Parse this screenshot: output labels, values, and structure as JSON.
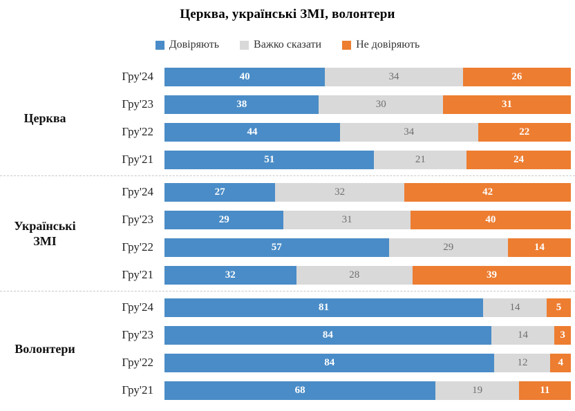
{
  "title": "Церква, українські ЗМІ, волонтери",
  "legend": [
    {
      "label": "Довіряють",
      "color": "#4a8cc7",
      "icon": "square-swatch-blue"
    },
    {
      "label": "Важко сказати",
      "color": "#d9d9d9",
      "icon": "square-swatch-gray"
    },
    {
      "label": "Не  довіряють",
      "color": "#ed7d31",
      "icon": "square-swatch-orange"
    }
  ],
  "chart_data": {
    "type": "bar",
    "orientation": "horizontal",
    "stacked": true,
    "title": "Церква, українські ЗМІ, волонтери",
    "xlabel": "",
    "ylabel": "",
    "xlim": [
      0,
      100
    ],
    "grid": false,
    "legend_position": "top",
    "series_names": [
      "Довіряють",
      "Важко сказати",
      "Не довіряють"
    ],
    "series_keys": [
      "trust",
      "hard",
      "distrust"
    ],
    "colors": [
      "#4a8cc7",
      "#d9d9d9",
      "#ed7d31"
    ],
    "groups": [
      {
        "name": "Церква",
        "rows": [
          {
            "label": "Гру'24",
            "values": [
              40,
              34,
              26
            ]
          },
          {
            "label": "Гру'23",
            "values": [
              38,
              30,
              31
            ]
          },
          {
            "label": "Гру'22",
            "values": [
              44,
              34,
              22
            ]
          },
          {
            "label": "Гру'21",
            "values": [
              51,
              21,
              24
            ]
          }
        ]
      },
      {
        "name": "Українські ЗМІ",
        "rows": [
          {
            "label": "Гру'24",
            "values": [
              27,
              32,
              42
            ]
          },
          {
            "label": "Гру'23",
            "values": [
              29,
              31,
              40
            ]
          },
          {
            "label": "Гру'22",
            "values": [
              57,
              29,
              14
            ]
          },
          {
            "label": "Гру'21",
            "values": [
              32,
              28,
              39
            ]
          }
        ]
      },
      {
        "name": "Волонтери",
        "rows": [
          {
            "label": "Гру'24",
            "values": [
              81,
              14,
              5
            ]
          },
          {
            "label": "Гру'23",
            "values": [
              84,
              14,
              3
            ]
          },
          {
            "label": "Гру'22",
            "values": [
              84,
              12,
              4
            ]
          },
          {
            "label": "Гру'21",
            "values": [
              68,
              19,
              11
            ]
          }
        ]
      }
    ]
  }
}
